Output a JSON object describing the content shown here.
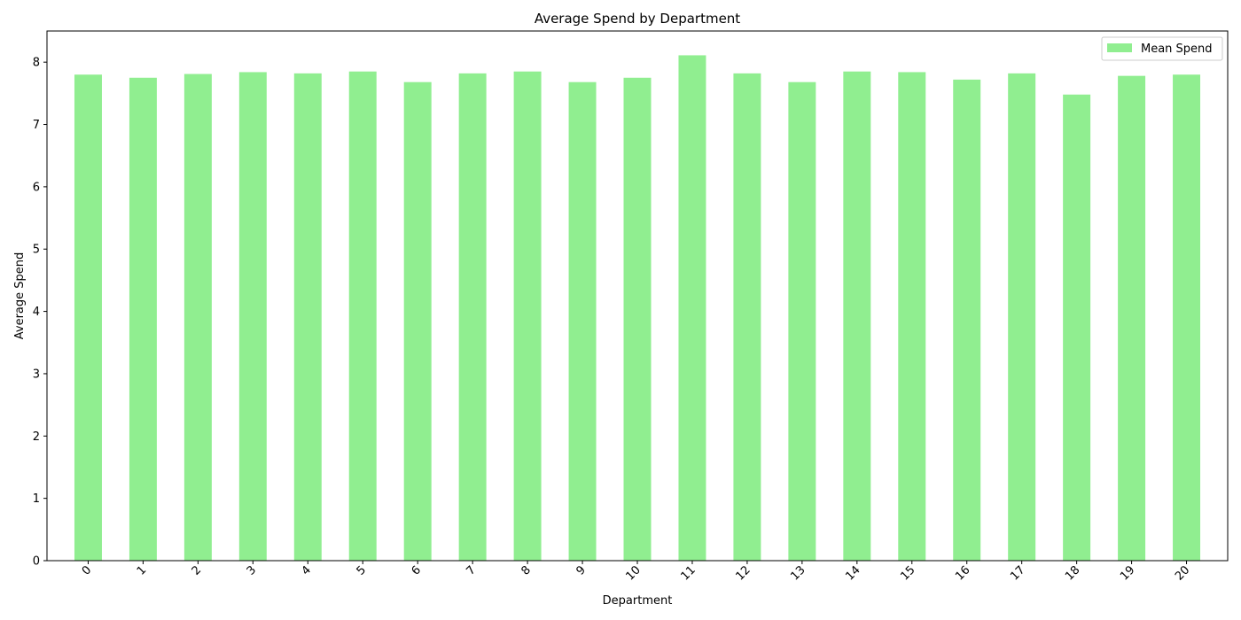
{
  "chart_data": {
    "type": "bar",
    "title": "Average Spend by Department",
    "xlabel": "Department",
    "ylabel": "Average Spend",
    "categories": [
      "0",
      "1",
      "2",
      "3",
      "4",
      "5",
      "6",
      "7",
      "8",
      "9",
      "10",
      "11",
      "12",
      "13",
      "14",
      "15",
      "16",
      "17",
      "18",
      "19",
      "20"
    ],
    "series": [
      {
        "name": "Mean Spend",
        "color": "#90ee90",
        "values": [
          7.8,
          7.75,
          7.81,
          7.84,
          7.82,
          7.85,
          7.68,
          7.82,
          7.85,
          7.68,
          7.75,
          8.11,
          7.82,
          7.68,
          7.85,
          7.84,
          7.72,
          7.82,
          7.48,
          7.78,
          7.8
        ]
      }
    ],
    "ylim": [
      0,
      8.5
    ],
    "yticks": [
      0,
      1,
      2,
      3,
      4,
      5,
      6,
      7,
      8
    ],
    "grid": false,
    "legend_position": "top-right"
  }
}
